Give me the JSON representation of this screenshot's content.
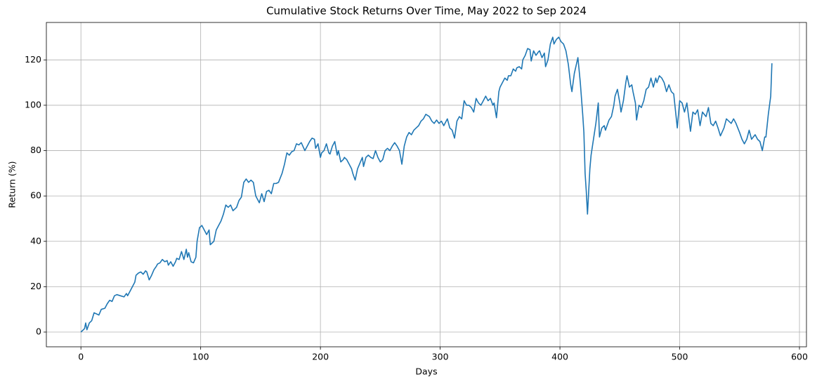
{
  "chart_data": {
    "type": "line",
    "title": "Cumulative Stock Returns Over Time, May 2022 to Sep 2024",
    "xlabel": "Days",
    "ylabel": "Return (%)",
    "color": "#1f77b4",
    "grid": true,
    "xlim": [
      -28.85,
      605.85
    ],
    "ylim": [
      -6.5,
      136.5
    ],
    "xticks": [
      0,
      100,
      200,
      300,
      400,
      500,
      600
    ],
    "yticks": [
      0,
      20,
      40,
      60,
      80,
      100,
      120
    ],
    "x": [
      0,
      3,
      4,
      5,
      7,
      9,
      11,
      13,
      15,
      17,
      20,
      22,
      24,
      26,
      28,
      30,
      33,
      36,
      38,
      39,
      41,
      43,
      45,
      46,
      48,
      50,
      52,
      54,
      55,
      57,
      59,
      61,
      63,
      64,
      66,
      68,
      70,
      72,
      73,
      75,
      77,
      79,
      80,
      82,
      84,
      86,
      88,
      89,
      90,
      92,
      94,
      96,
      97,
      99,
      101,
      103,
      105,
      107,
      108,
      111,
      113,
      115,
      117,
      119,
      121,
      123,
      125,
      127,
      130,
      132,
      134,
      136,
      138,
      140,
      142,
      144,
      146,
      149,
      151,
      153,
      155,
      157,
      159,
      161,
      163,
      165,
      168,
      170,
      172,
      174,
      176,
      178,
      180,
      182,
      184,
      187,
      189,
      191,
      193,
      195,
      196,
      198,
      200,
      201,
      203,
      205,
      207,
      208,
      210,
      212,
      214,
      215,
      217,
      219,
      220,
      222,
      224,
      226,
      227,
      229,
      231,
      233,
      235,
      236,
      238,
      240,
      242,
      244,
      246,
      248,
      250,
      252,
      254,
      256,
      258,
      260,
      262,
      264,
      266,
      268,
      270,
      272,
      274,
      276,
      278,
      280,
      282,
      284,
      286,
      288,
      291,
      293,
      295,
      297,
      299,
      301,
      303,
      306,
      308,
      310,
      312,
      314,
      316,
      318,
      320,
      322,
      324,
      326,
      328,
      330,
      332,
      334,
      336,
      338,
      340,
      342,
      344,
      345,
      347,
      349,
      350,
      352,
      354,
      356,
      357,
      359,
      361,
      363,
      364,
      366,
      368,
      369,
      371,
      373,
      375,
      376,
      378,
      380,
      382,
      383,
      385,
      387,
      388,
      390,
      392,
      394,
      395,
      397,
      399,
      401,
      403,
      405,
      407,
      409,
      410,
      412,
      415,
      417,
      419,
      420,
      421,
      422,
      423,
      425,
      426,
      428,
      430,
      432,
      433,
      435,
      437,
      438,
      440,
      441,
      443,
      445,
      446,
      448,
      450,
      451,
      453,
      455,
      456,
      458,
      460,
      461,
      463,
      464,
      466,
      468,
      470,
      472,
      474,
      476,
      478,
      480,
      481,
      483,
      485,
      487,
      489,
      491,
      493,
      495,
      496,
      498,
      500,
      502,
      504,
      506,
      509,
      511,
      513,
      515,
      517,
      519,
      522,
      524,
      526,
      528,
      530,
      532,
      534,
      537,
      539,
      541,
      543,
      545,
      547,
      550,
      552,
      554,
      556,
      558,
      560,
      563,
      565,
      567,
      569,
      571,
      572,
      573,
      574,
      576,
      577
    ],
    "values": [
      0,
      1.5,
      4,
      1,
      4,
      5,
      8.5,
      8,
      7.5,
      10,
      10.5,
      12.5,
      14,
      13.5,
      16,
      16.5,
      16,
      15.5,
      17,
      16,
      18,
      20,
      22,
      25,
      26,
      26.5,
      25.5,
      27,
      26.5,
      23,
      25,
      27.5,
      29,
      30,
      30.5,
      32,
      31,
      31.5,
      29.5,
      31,
      29,
      31,
      32.5,
      32,
      35.5,
      32,
      36.5,
      33,
      35,
      31,
      30.5,
      33,
      40,
      46,
      47,
      45,
      43,
      45,
      38.5,
      40,
      45,
      47,
      49,
      52,
      56,
      55,
      56,
      53.5,
      55,
      58,
      59.5,
      66,
      67.5,
      66,
      67,
      66,
      60,
      57,
      61,
      57.5,
      62,
      62.5,
      61,
      65.5,
      65.5,
      66,
      70,
      74,
      79,
      78,
      79.5,
      80,
      83,
      82.5,
      83.5,
      80,
      82,
      84,
      85.5,
      85,
      81,
      83,
      77,
      79,
      80,
      83,
      79,
      78.5,
      82,
      84,
      78,
      80,
      75,
      76,
      77,
      76,
      74,
      72,
      70,
      67,
      72,
      74.5,
      77,
      73,
      77,
      78,
      77,
      76.5,
      80,
      77,
      75,
      76,
      80,
      81,
      80,
      82,
      83.5,
      82,
      80,
      74,
      82,
      86,
      88,
      87,
      89,
      90,
      91,
      93,
      94,
      96,
      95,
      93,
      92,
      93.5,
      92,
      93,
      91,
      94,
      90,
      89,
      85.5,
      93,
      95,
      94,
      102,
      100,
      100,
      99,
      97,
      103,
      101,
      100,
      102,
      104,
      102,
      103,
      100,
      101,
      94.5,
      106,
      108,
      110,
      112,
      111,
      113,
      113,
      116,
      115,
      116.5,
      117,
      116,
      120,
      122,
      125,
      124.5,
      119.5,
      124,
      122,
      123.5,
      124,
      121,
      123,
      117,
      120,
      127,
      130,
      127,
      129,
      130,
      128,
      127,
      124,
      118,
      109,
      106,
      114,
      121,
      110,
      96,
      88,
      70,
      62,
      52,
      72,
      78,
      85,
      92,
      101,
      86,
      90,
      91,
      89,
      92,
      93.5,
      95,
      100,
      104,
      107,
      101,
      97,
      102,
      110,
      113,
      108,
      109,
      106,
      101,
      93.5,
      100,
      99,
      102,
      107,
      108,
      112,
      108,
      112,
      110,
      113,
      112,
      110,
      106,
      109,
      106,
      105,
      100,
      90,
      102,
      101,
      97,
      101,
      88.5,
      97,
      96,
      98,
      91,
      97,
      95,
      99,
      92,
      91,
      93,
      90,
      86.5,
      90,
      94,
      93,
      92,
      94,
      92,
      88,
      85,
      83,
      85,
      89,
      85,
      87,
      85,
      84,
      80,
      86,
      86,
      91,
      96,
      104,
      118.5
    ]
  }
}
